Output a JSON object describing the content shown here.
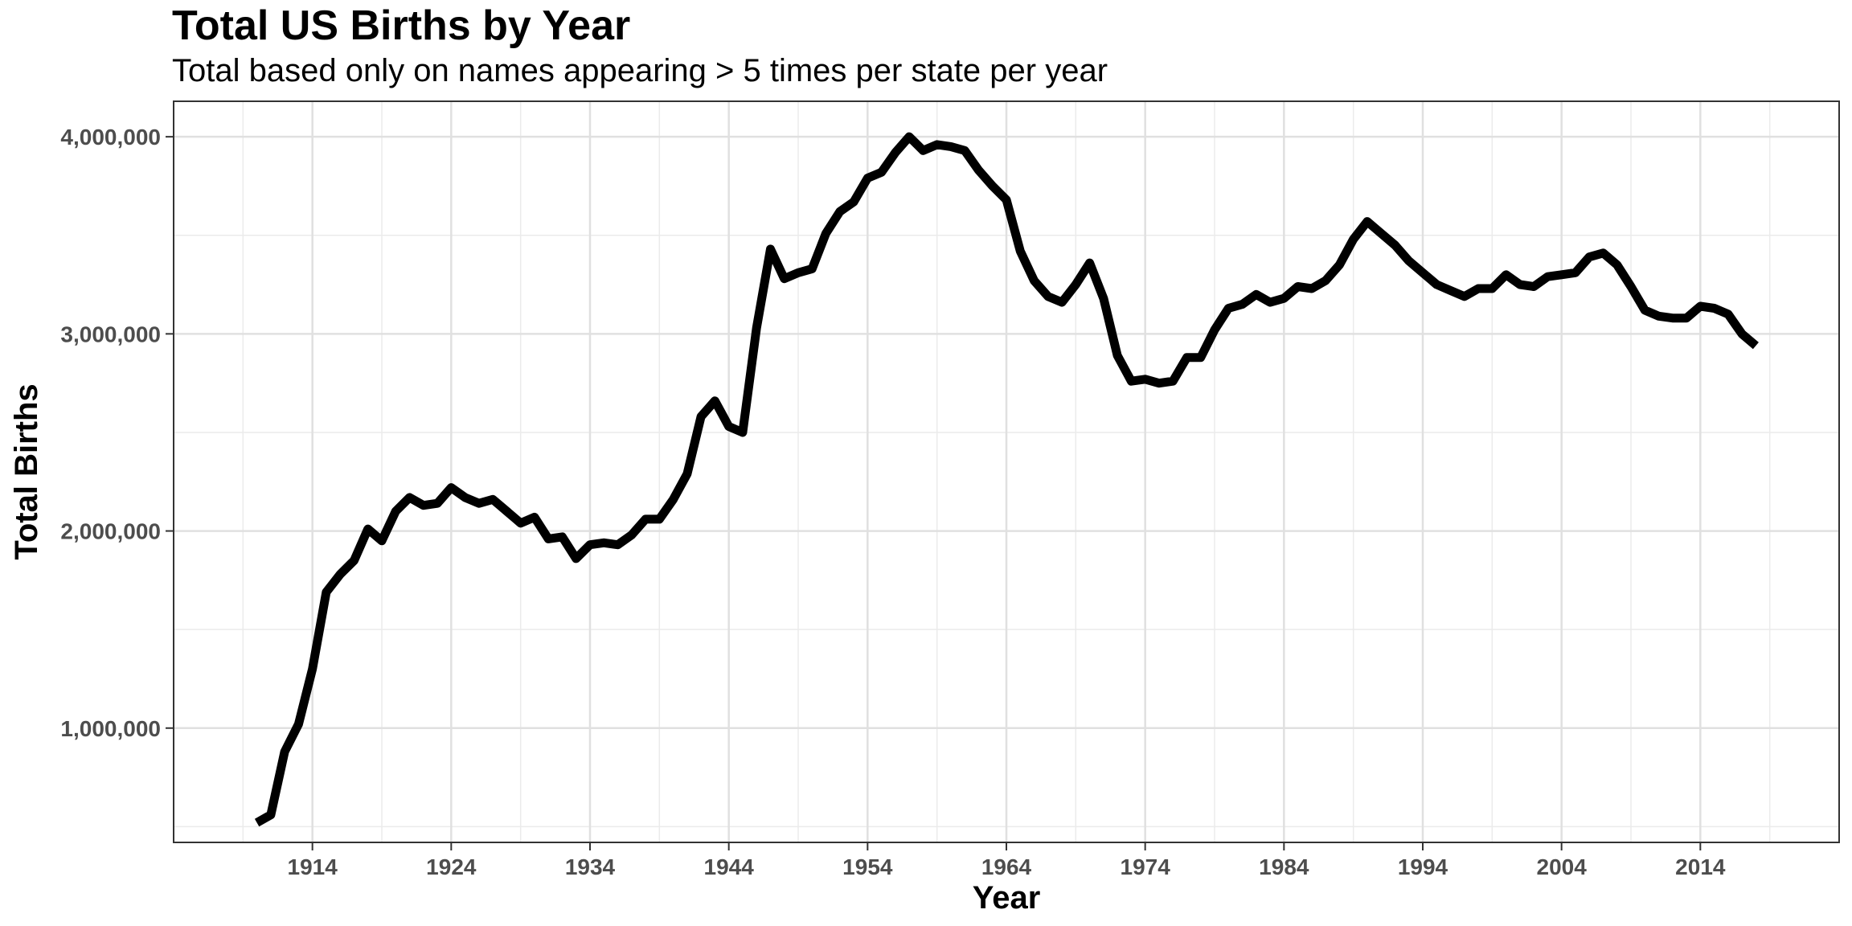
{
  "chart_data": {
    "type": "line",
    "title": "Total US Births by Year",
    "subtitle": "Total based only on names appearing > 5 times per state per year",
    "xlabel": "Year",
    "ylabel": "Total Births",
    "xlim": [
      1904,
      2024
    ],
    "ylim": [
      420000,
      4180000
    ],
    "x_ticks": [
      1914,
      1924,
      1934,
      1944,
      1954,
      1964,
      1974,
      1984,
      1994,
      2004,
      2014
    ],
    "y_ticks": [
      1000000,
      2000000,
      3000000,
      4000000
    ],
    "y_tick_labels": [
      "1,000,000",
      "2,000,000",
      "3,000,000",
      "4,000,000"
    ],
    "grid": true,
    "line_color": "#000000",
    "series": [
      {
        "x": [
          1910,
          1911,
          1912,
          1913,
          1914,
          1915,
          1916,
          1917,
          1918,
          1919,
          1920,
          1921,
          1922,
          1923,
          1924,
          1925,
          1926,
          1927,
          1928,
          1929,
          1930,
          1931,
          1932,
          1933,
          1934,
          1935,
          1936,
          1937,
          1938,
          1939,
          1940,
          1941,
          1942,
          1943,
          1944,
          1945,
          1946,
          1947,
          1948,
          1949,
          1950,
          1951,
          1952,
          1953,
          1954,
          1955,
          1956,
          1957,
          1958,
          1959,
          1960,
          1961,
          1962,
          1963,
          1964,
          1965,
          1966,
          1967,
          1968,
          1969,
          1970,
          1971,
          1972,
          1973,
          1974,
          1975,
          1976,
          1977,
          1978,
          1979,
          1980,
          1981,
          1982,
          1983,
          1984,
          1985,
          1986,
          1987,
          1988,
          1989,
          1990,
          1991,
          1992,
          1993,
          1994,
          1995,
          1996,
          1997,
          1998,
          1999,
          2000,
          2001,
          2002,
          2003,
          2004,
          2005,
          2006,
          2007,
          2008,
          2009,
          2010,
          2011,
          2012,
          2013,
          2014,
          2015,
          2016,
          2017,
          2018
        ],
        "values": [
          520000,
          560000,
          880000,
          1020000,
          1300000,
          1690000,
          1780000,
          1850000,
          2010000,
          1950000,
          2100000,
          2170000,
          2130000,
          2140000,
          2220000,
          2170000,
          2140000,
          2160000,
          2100000,
          2040000,
          2070000,
          1960000,
          1970000,
          1860000,
          1930000,
          1940000,
          1930000,
          1980000,
          2060000,
          2060000,
          2160000,
          2290000,
          2580000,
          2660000,
          2530000,
          2500000,
          3030000,
          3430000,
          3280000,
          3310000,
          3330000,
          3510000,
          3620000,
          3670000,
          3790000,
          3820000,
          3920000,
          4000000,
          3930000,
          3960000,
          3950000,
          3930000,
          3830000,
          3750000,
          3680000,
          3420000,
          3270000,
          3190000,
          3160000,
          3250000,
          3360000,
          3180000,
          2890000,
          2760000,
          2770000,
          2750000,
          2760000,
          2880000,
          2880000,
          3020000,
          3130000,
          3150000,
          3200000,
          3160000,
          3180000,
          3240000,
          3230000,
          3270000,
          3350000,
          3480000,
          3570000,
          3510000,
          3450000,
          3370000,
          3310000,
          3250000,
          3220000,
          3190000,
          3230000,
          3230000,
          3300000,
          3250000,
          3240000,
          3290000,
          3300000,
          3310000,
          3390000,
          3410000,
          3350000,
          3240000,
          3120000,
          3090000,
          3080000,
          3080000,
          3140000,
          3130000,
          3100000,
          3000000,
          2940000
        ]
      }
    ]
  }
}
